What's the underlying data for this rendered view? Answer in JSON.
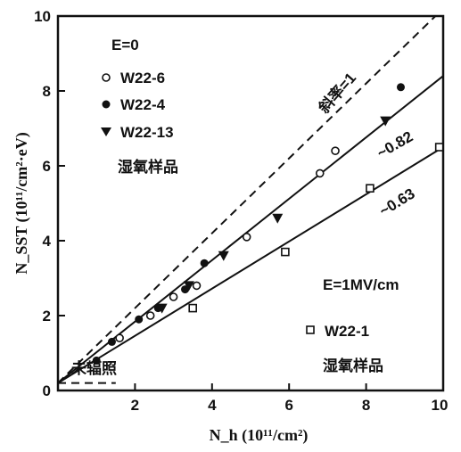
{
  "chart_data": {
    "type": "scatter",
    "title": "",
    "xlabel": "N_h (10¹¹/cm²)",
    "ylabel": "N_SST (10¹¹/cm²·eV)",
    "xlim": [
      0,
      10
    ],
    "ylim": [
      0,
      10
    ],
    "x_ticks": [
      "2",
      "4",
      "6",
      "8",
      "10"
    ],
    "y_ticks": [
      "0",
      "2",
      "4",
      "6",
      "8",
      "10"
    ],
    "grid": false,
    "legend_groups": [
      {
        "heading": "E=0",
        "entries": [
          "W22-6",
          "W22-4",
          "W22-13"
        ],
        "note": "湿氧样品"
      },
      {
        "heading": "E=1MV/cm",
        "entries": [
          "W22-1"
        ],
        "note": "湿氧样品"
      }
    ],
    "series": [
      {
        "name": "W22-6",
        "marker": "open-circle",
        "points": [
          [
            1.6,
            1.4
          ],
          [
            2.4,
            2.0
          ],
          [
            3.0,
            2.5
          ],
          [
            3.6,
            2.8
          ],
          [
            4.9,
            4.1
          ],
          [
            6.8,
            5.8
          ],
          [
            7.2,
            6.4
          ]
        ]
      },
      {
        "name": "W22-4",
        "marker": "filled-circle",
        "points": [
          [
            1.0,
            0.8
          ],
          [
            1.4,
            1.3
          ],
          [
            2.1,
            1.9
          ],
          [
            2.6,
            2.2
          ],
          [
            3.3,
            2.7
          ],
          [
            3.8,
            3.4
          ],
          [
            8.9,
            8.1
          ]
        ]
      },
      {
        "name": "W22-13",
        "marker": "filled-triangle-down",
        "points": [
          [
            2.7,
            2.2
          ],
          [
            3.4,
            2.8
          ],
          [
            4.3,
            3.6
          ],
          [
            5.7,
            4.6
          ],
          [
            8.5,
            7.2
          ]
        ]
      },
      {
        "name": "W22-1",
        "marker": "open-square",
        "points": [
          [
            3.5,
            2.2
          ],
          [
            5.9,
            3.7
          ],
          [
            8.1,
            5.4
          ],
          [
            9.9,
            6.5
          ]
        ]
      }
    ],
    "lines": [
      {
        "label": "斜率=1",
        "style": "dashed",
        "x": [
          0,
          10
        ],
        "y": [
          0.2,
          10.2
        ]
      },
      {
        "label": "~0.82",
        "style": "solid",
        "x": [
          0,
          10
        ],
        "y": [
          0.2,
          8.4
        ]
      },
      {
        "label": "~0.63",
        "style": "solid",
        "x": [
          0,
          10
        ],
        "y": [
          0.2,
          6.5
        ]
      },
      {
        "label": "",
        "style": "dashed",
        "x": [
          0,
          1.5
        ],
        "y": [
          0.2,
          0.2
        ]
      }
    ],
    "annotations": {
      "unirradiated": "未辐照"
    }
  }
}
